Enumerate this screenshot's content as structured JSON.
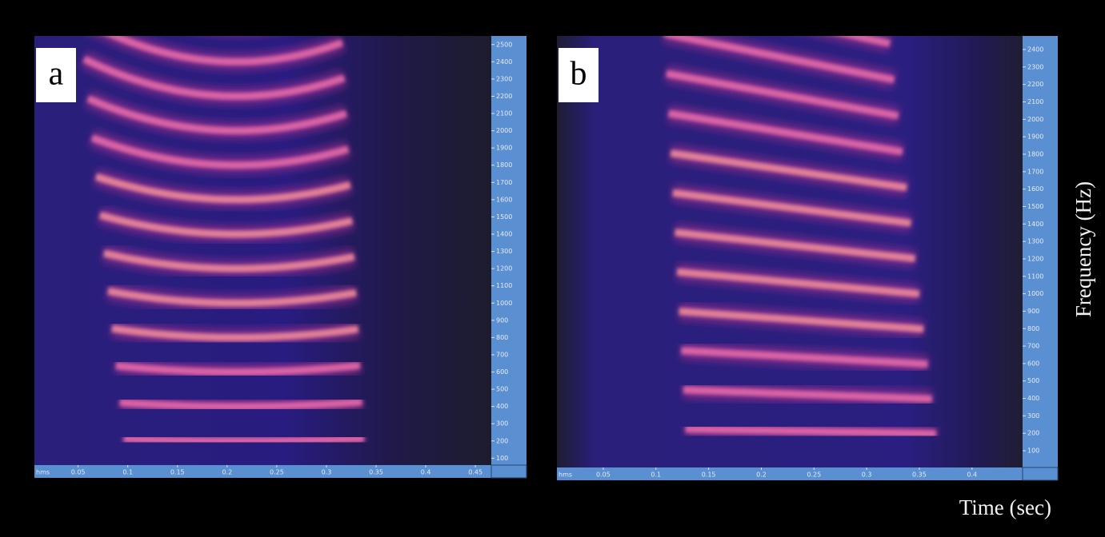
{
  "chart_data": [
    {
      "type": "spectrogram",
      "panel_label": "a",
      "x_unit_label": "hms",
      "xlim": [
        0.006,
        0.466
      ],
      "xticks": [
        0.05,
        0.1,
        0.15,
        0.2,
        0.25,
        0.3,
        0.35,
        0.4,
        0.45
      ],
      "ylim": [
        60,
        2550
      ],
      "yticks": [
        100,
        200,
        300,
        400,
        500,
        600,
        700,
        800,
        900,
        1000,
        1100,
        1200,
        1300,
        1400,
        1500,
        1600,
        1700,
        1800,
        1900,
        2000,
        2100,
        2200,
        2300,
        2400,
        2500
      ]
    },
    {
      "type": "spectrogram",
      "panel_label": "b",
      "x_unit_label": "hms",
      "xlim": [
        0.006,
        0.448
      ],
      "xticks": [
        0.05,
        0.1,
        0.15,
        0.2,
        0.25,
        0.3,
        0.35,
        0.4
      ],
      "ylim": [
        4,
        2478
      ],
      "yticks": [
        100,
        200,
        300,
        400,
        500,
        600,
        700,
        800,
        900,
        1000,
        1100,
        1200,
        1300,
        1400,
        1500,
        1600,
        1700,
        1800,
        1900,
        2000,
        2100,
        2200,
        2300,
        2400
      ]
    }
  ],
  "y_axis_label": "Frequency (Hz)",
  "x_axis_label": "Time (sec)"
}
